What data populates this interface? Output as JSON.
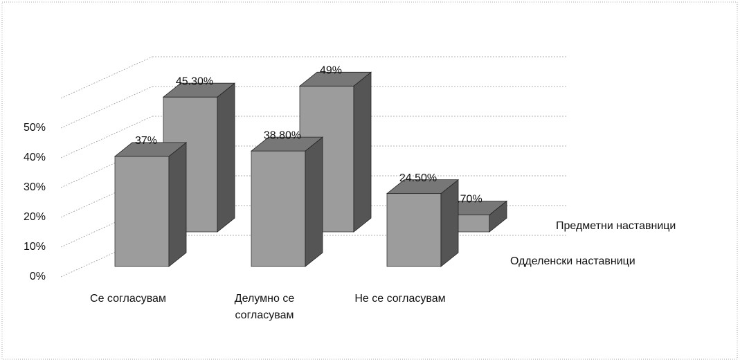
{
  "chart_data": {
    "type": "bar3d",
    "categories": [
      "Се согласувам",
      "Делумно се согласувам",
      "Не се согласувам"
    ],
    "series": [
      {
        "name": "Одделенски наставници",
        "color": "#9c9c9c",
        "values": [
          37,
          38.8,
          24.5
        ],
        "value_labels": [
          "37%",
          "38.80%",
          "24.50%"
        ]
      },
      {
        "name": "Предметни наставници",
        "color": "#9c9c9c",
        "values": [
          45.3,
          49,
          5.7
        ],
        "value_labels": [
          "45.30%",
          "49%",
          "5.70%"
        ]
      }
    ],
    "ylim": [
      0,
      60
    ],
    "yticks": [
      {
        "value": 0,
        "label": "0%"
      },
      {
        "value": 10,
        "label": "10%"
      },
      {
        "value": 20,
        "label": "20%"
      },
      {
        "value": 30,
        "label": "30%"
      },
      {
        "value": 40,
        "label": "40%"
      },
      {
        "value": 50,
        "label": "50%"
      }
    ],
    "grid": true
  }
}
